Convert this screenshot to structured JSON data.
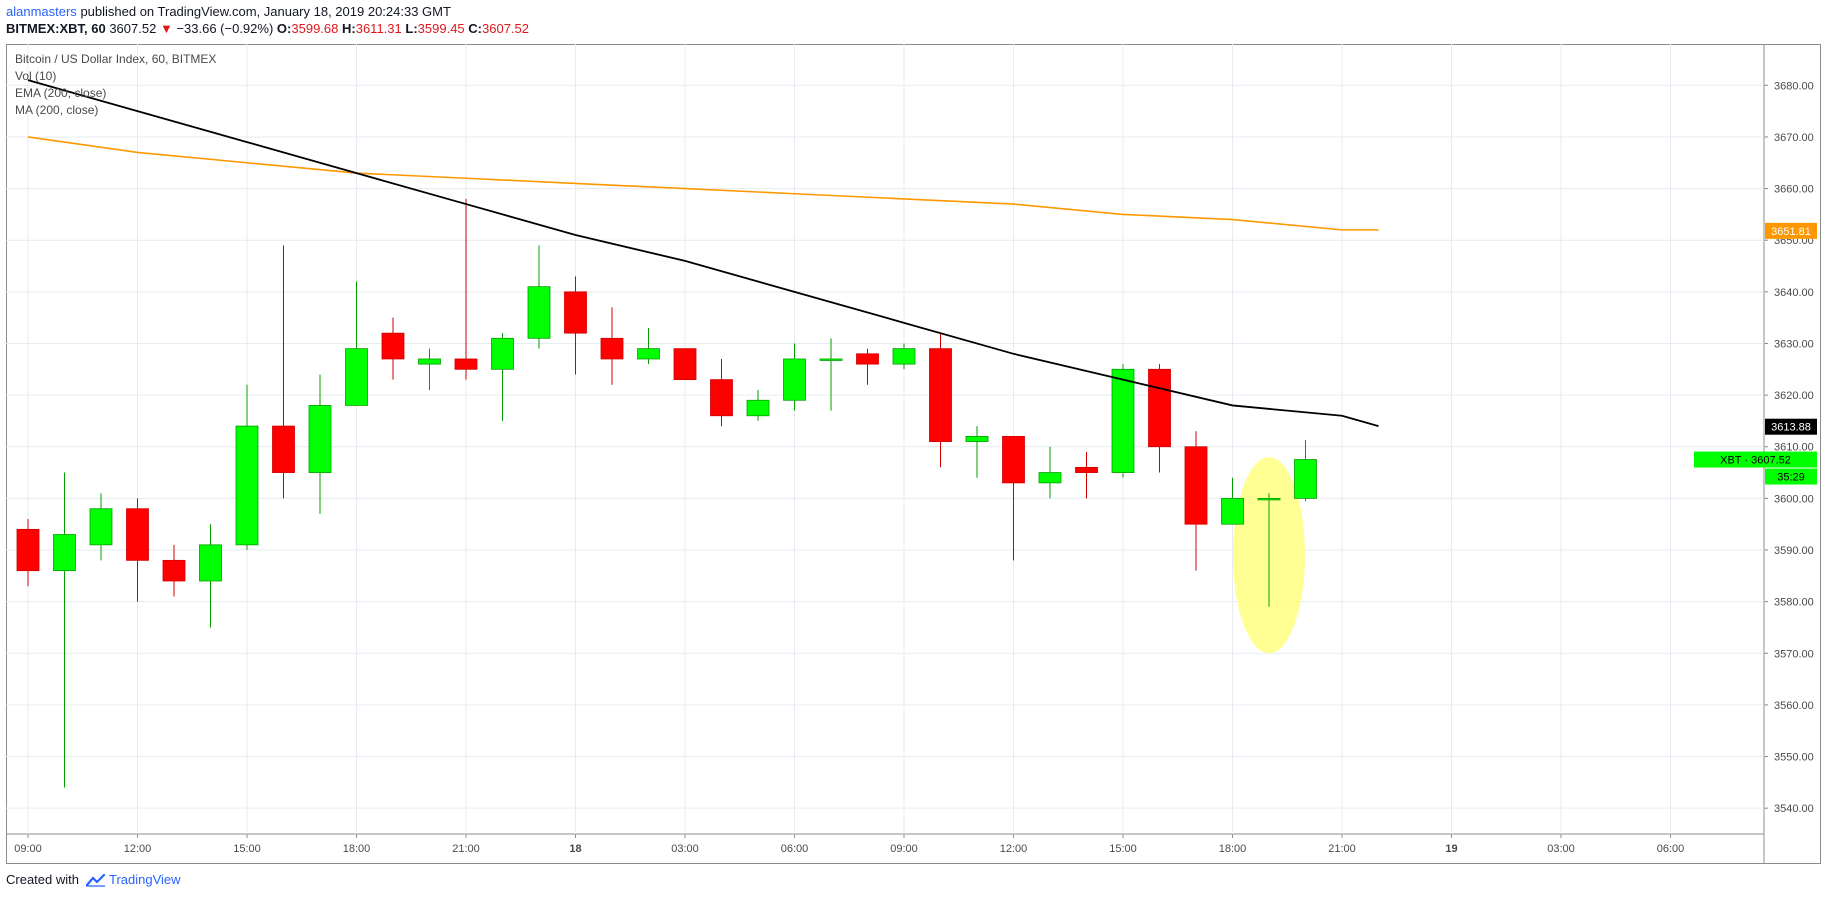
{
  "header": {
    "author": "alanmasters",
    "published_text": "published on TradingView.com, January 18, 2019 20:24:33 GMT",
    "symbol": "BITMEX:XBT, 60",
    "last_price": "3607.52",
    "change_arrow": "▼",
    "change": "−33.66 (−0.92%)",
    "o_label": "O:",
    "o_value": "3599.68",
    "h_label": "H:",
    "h_value": "3611.31",
    "l_label": "L:",
    "l_value": "3599.45",
    "c_label": "C:",
    "c_value": "3607.52"
  },
  "legend": {
    "title": "Bitcoin / US Dollar Index, 60, BITMEX",
    "vol": "Vol (10)",
    "ema": "EMA (200, close)",
    "ma": "MA (200, close)"
  },
  "footer": {
    "created_with": "Created with",
    "brand": "TradingView"
  },
  "colors": {
    "up": "#00ff00",
    "down": "#ff0000",
    "ema": "#000000",
    "ma": "#ff9800",
    "highlight": "#ffff80",
    "grid": "#e6ecf2"
  },
  "chart_data": {
    "type": "candlestick",
    "y_range": [
      3535,
      3688
    ],
    "y_ticks": [
      "3540.00",
      "3550.00",
      "3560.00",
      "3570.00",
      "3580.00",
      "3590.00",
      "3600.00",
      "3610.00",
      "3620.00",
      "3630.00",
      "3640.00",
      "3650.00",
      "3660.00",
      "3670.00",
      "3680.00"
    ],
    "x_ticks": [
      {
        "label": "09:00",
        "hour": 0
      },
      {
        "label": "12:00",
        "hour": 3
      },
      {
        "label": "15:00",
        "hour": 6
      },
      {
        "label": "18:00",
        "hour": 9
      },
      {
        "label": "21:00",
        "hour": 12
      },
      {
        "label": "18",
        "hour": 15,
        "bold": true
      },
      {
        "label": "03:00",
        "hour": 18
      },
      {
        "label": "06:00",
        "hour": 21
      },
      {
        "label": "09:00",
        "hour": 24
      },
      {
        "label": "12:00",
        "hour": 27
      },
      {
        "label": "15:00",
        "hour": 30
      },
      {
        "label": "18:00",
        "hour": 33
      },
      {
        "label": "21:00",
        "hour": 36
      },
      {
        "label": "19",
        "hour": 39,
        "bold": true
      },
      {
        "label": "03:00",
        "hour": 42
      },
      {
        "label": "06:00",
        "hour": 45
      }
    ],
    "candles": [
      {
        "o": 3594,
        "h": 3596,
        "l": 3583,
        "c": 3586
      },
      {
        "o": 3586,
        "h": 3605,
        "l": 3544,
        "c": 3593
      },
      {
        "o": 3591,
        "h": 3601,
        "l": 3588,
        "c": 3598
      },
      {
        "o": 3598,
        "h": 3600,
        "l": 3580,
        "c": 3588
      },
      {
        "o": 3588,
        "h": 3591,
        "l": 3581,
        "c": 3584
      },
      {
        "o": 3584,
        "h": 3595,
        "l": 3575,
        "c": 3591
      },
      {
        "o": 3591,
        "h": 3622,
        "l": 3590,
        "c": 3614
      },
      {
        "o": 3614,
        "h": 3649,
        "l": 3600,
        "c": 3605
      },
      {
        "o": 3605,
        "h": 3624,
        "l": 3597,
        "c": 3618
      },
      {
        "o": 3618,
        "h": 3642,
        "l": 3618,
        "c": 3629
      },
      {
        "o": 3632,
        "h": 3635,
        "l": 3623,
        "c": 3627
      },
      {
        "o": 3626,
        "h": 3629,
        "l": 3621,
        "c": 3627
      },
      {
        "o": 3627,
        "h": 3658,
        "l": 3623,
        "c": 3625
      },
      {
        "o": 3625,
        "h": 3632,
        "l": 3615,
        "c": 3631
      },
      {
        "o": 3631,
        "h": 3649,
        "l": 3629,
        "c": 3641
      },
      {
        "o": 3640,
        "h": 3643,
        "l": 3624,
        "c": 3632
      },
      {
        "o": 3631,
        "h": 3637,
        "l": 3622,
        "c": 3627
      },
      {
        "o": 3627,
        "h": 3633,
        "l": 3626,
        "c": 3629
      },
      {
        "o": 3629,
        "h": 3629,
        "l": 3623,
        "c": 3623
      },
      {
        "o": 3623,
        "h": 3627,
        "l": 3614,
        "c": 3616
      },
      {
        "o": 3616,
        "h": 3621,
        "l": 3615,
        "c": 3619
      },
      {
        "o": 3619,
        "h": 3630,
        "l": 3617,
        "c": 3627
      },
      {
        "o": 3627,
        "h": 3631,
        "l": 3617,
        "c": 3627
      },
      {
        "o": 3628,
        "h": 3629,
        "l": 3622,
        "c": 3626
      },
      {
        "o": 3626,
        "h": 3630,
        "l": 3625,
        "c": 3629
      },
      {
        "o": 3629,
        "h": 3632,
        "l": 3606,
        "c": 3611
      },
      {
        "o": 3611,
        "h": 3614,
        "l": 3604,
        "c": 3612
      },
      {
        "o": 3612,
        "h": 3612,
        "l": 3588,
        "c": 3603
      },
      {
        "o": 3603,
        "h": 3610,
        "l": 3600,
        "c": 3605
      },
      {
        "o": 3606,
        "h": 3609,
        "l": 3600,
        "c": 3605
      },
      {
        "o": 3605,
        "h": 3626,
        "l": 3604,
        "c": 3625
      },
      {
        "o": 3625,
        "h": 3626,
        "l": 3605,
        "c": 3610
      },
      {
        "o": 3610,
        "h": 3613,
        "l": 3586,
        "c": 3595
      },
      {
        "o": 3595,
        "h": 3604,
        "l": 3595,
        "c": 3600
      },
      {
        "o": 3600,
        "h": 3601,
        "l": 3579,
        "c": 3600
      },
      {
        "o": 3600,
        "h": 3611.31,
        "l": 3599.45,
        "c": 3607.52
      }
    ],
    "ema": [
      [
        0,
        3681
      ],
      [
        3,
        3675
      ],
      [
        6,
        3669
      ],
      [
        9,
        3663
      ],
      [
        12,
        3657
      ],
      [
        15,
        3651
      ],
      [
        18,
        3646
      ],
      [
        21,
        3640
      ],
      [
        24,
        3634
      ],
      [
        27,
        3628
      ],
      [
        30,
        3623
      ],
      [
        33,
        3618
      ],
      [
        36,
        3616
      ],
      [
        37,
        3614
      ]
    ],
    "ma": [
      [
        0,
        3670
      ],
      [
        3,
        3667
      ],
      [
        6,
        3665
      ],
      [
        9,
        3663
      ],
      [
        12,
        3662
      ],
      [
        15,
        3661
      ],
      [
        18,
        3660
      ],
      [
        21,
        3659
      ],
      [
        24,
        3658
      ],
      [
        27,
        3657
      ],
      [
        30,
        3655
      ],
      [
        33,
        3654
      ],
      [
        36,
        3652
      ],
      [
        37,
        3652
      ]
    ],
    "ma_last_label": "3651.81",
    "ema_last_label": "3613.88",
    "price_tag": "XBT · 3607.52",
    "countdown": "35:29",
    "highlight_candle_index": 34
  }
}
